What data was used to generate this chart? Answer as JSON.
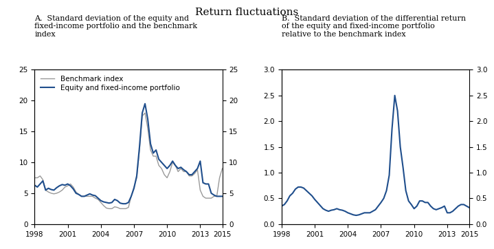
{
  "title": "Return fluctuations",
  "panel_a_title": "A.  Standard deviation of the equity and\nfixed-income portfolio and the benchmark\nindex",
  "panel_b_title": "B.  Standard deviation of the differential return\nof the equity and fixed-income portfolio\nrelative to the benchmark index",
  "legend_equity": "Equity and fixed-income portfolio",
  "legend_benchmark": "Benchmark index",
  "color_equity": "#1f4e8c",
  "color_benchmark": "#999999",
  "panel_a_ylim": [
    0,
    25
  ],
  "panel_a_yticks": [
    0,
    5,
    10,
    15,
    20,
    25
  ],
  "panel_b_ylim": [
    0.0,
    3.0
  ],
  "panel_b_yticks": [
    0.0,
    0.5,
    1.0,
    1.5,
    2.0,
    2.5,
    3.0
  ],
  "xticks": [
    1998,
    2001,
    2004,
    2007,
    2010,
    2013,
    2015
  ],
  "background_color": "#ffffff",
  "years_a": [
    1998.0,
    1998.25,
    1998.5,
    1998.75,
    1999.0,
    1999.25,
    1999.5,
    1999.75,
    2000.0,
    2000.25,
    2000.5,
    2000.75,
    2001.0,
    2001.25,
    2001.5,
    2001.75,
    2002.0,
    2002.25,
    2002.5,
    2002.75,
    2003.0,
    2003.25,
    2003.5,
    2003.75,
    2004.0,
    2004.25,
    2004.5,
    2004.75,
    2005.0,
    2005.25,
    2005.5,
    2005.75,
    2006.0,
    2006.25,
    2006.5,
    2006.75,
    2007.0,
    2007.25,
    2007.5,
    2007.75,
    2008.0,
    2008.25,
    2008.5,
    2008.75,
    2009.0,
    2009.25,
    2009.5,
    2009.75,
    2010.0,
    2010.25,
    2010.5,
    2010.75,
    2011.0,
    2011.25,
    2011.5,
    2011.75,
    2012.0,
    2012.25,
    2012.5,
    2012.75,
    2013.0,
    2013.25,
    2013.5,
    2013.75,
    2014.0,
    2014.25,
    2014.5,
    2014.75,
    2015.0
  ],
  "equity_a": [
    6.3,
    6.0,
    6.5,
    7.0,
    5.5,
    5.8,
    5.6,
    5.5,
    5.9,
    6.2,
    6.4,
    6.3,
    6.5,
    6.2,
    5.7,
    5.0,
    4.8,
    4.5,
    4.5,
    4.7,
    4.9,
    4.7,
    4.6,
    4.2,
    3.8,
    3.6,
    3.5,
    3.4,
    3.5,
    4.0,
    3.8,
    3.4,
    3.3,
    3.3,
    3.5,
    4.5,
    5.8,
    7.8,
    12.5,
    18.0,
    19.5,
    17.0,
    13.0,
    11.5,
    12.0,
    10.5,
    10.0,
    9.5,
    9.0,
    9.5,
    10.2,
    9.5,
    9.0,
    9.2,
    8.8,
    8.5,
    8.0,
    8.0,
    8.5,
    9.0,
    10.2,
    6.7,
    6.5,
    6.5,
    5.0,
    4.7,
    4.5,
    4.5,
    4.5
  ],
  "benchmark_a": [
    7.5,
    7.5,
    7.8,
    7.2,
    5.5,
    5.2,
    5.0,
    4.9,
    5.0,
    5.2,
    5.5,
    6.0,
    6.2,
    6.5,
    6.0,
    5.2,
    4.8,
    4.5,
    4.5,
    4.5,
    4.5,
    4.5,
    4.2,
    4.0,
    3.5,
    3.0,
    2.6,
    2.5,
    2.5,
    2.8,
    2.7,
    2.5,
    2.5,
    2.5,
    2.7,
    4.5,
    6.0,
    7.5,
    12.0,
    17.5,
    18.0,
    15.5,
    12.0,
    11.0,
    11.0,
    9.5,
    9.0,
    8.0,
    7.5,
    8.5,
    10.0,
    9.5,
    8.5,
    9.0,
    8.5,
    8.5,
    7.8,
    7.8,
    8.2,
    8.8,
    5.5,
    4.5,
    4.2,
    4.2,
    4.2,
    4.5,
    4.5,
    7.5,
    9.0
  ],
  "years_b": [
    1998.0,
    1998.25,
    1998.5,
    1998.75,
    1999.0,
    1999.25,
    1999.5,
    1999.75,
    2000.0,
    2000.25,
    2000.5,
    2000.75,
    2001.0,
    2001.25,
    2001.5,
    2001.75,
    2002.0,
    2002.25,
    2002.5,
    2002.75,
    2003.0,
    2003.25,
    2003.5,
    2003.75,
    2004.0,
    2004.25,
    2004.5,
    2004.75,
    2005.0,
    2005.25,
    2005.5,
    2005.75,
    2006.0,
    2006.25,
    2006.5,
    2006.75,
    2007.0,
    2007.25,
    2007.5,
    2007.75,
    2008.0,
    2008.25,
    2008.5,
    2008.75,
    2009.0,
    2009.25,
    2009.5,
    2009.75,
    2010.0,
    2010.25,
    2010.5,
    2010.75,
    2011.0,
    2011.25,
    2011.5,
    2011.75,
    2012.0,
    2012.25,
    2012.5,
    2012.75,
    2013.0,
    2013.25,
    2013.5,
    2013.75,
    2014.0,
    2014.25,
    2014.5,
    2014.75,
    2015.0
  ],
  "diff_b": [
    0.35,
    0.38,
    0.45,
    0.55,
    0.6,
    0.68,
    0.72,
    0.72,
    0.7,
    0.65,
    0.6,
    0.55,
    0.48,
    0.42,
    0.36,
    0.3,
    0.27,
    0.25,
    0.27,
    0.28,
    0.3,
    0.28,
    0.27,
    0.25,
    0.22,
    0.2,
    0.18,
    0.17,
    0.18,
    0.2,
    0.22,
    0.22,
    0.22,
    0.25,
    0.28,
    0.35,
    0.42,
    0.5,
    0.65,
    0.95,
    1.85,
    2.5,
    2.2,
    1.5,
    1.1,
    0.65,
    0.45,
    0.38,
    0.3,
    0.35,
    0.45,
    0.45,
    0.42,
    0.42,
    0.35,
    0.3,
    0.28,
    0.3,
    0.32,
    0.35,
    0.22,
    0.22,
    0.25,
    0.3,
    0.35,
    0.38,
    0.38,
    0.35,
    0.32
  ]
}
